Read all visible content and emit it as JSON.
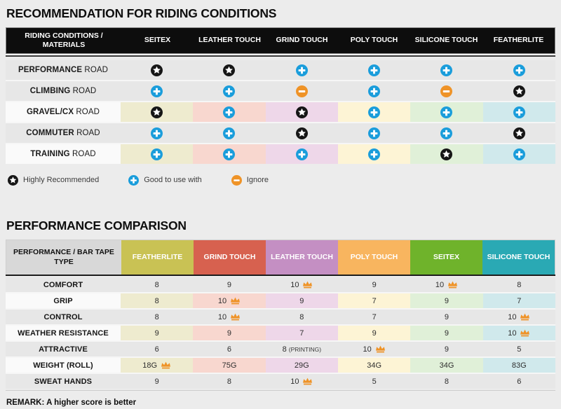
{
  "recommendation": {
    "title": "RECOMMENDATION FOR RIDING CONDITIONS",
    "header": [
      "RIDING CONDITIONS / MATERIALS",
      "SEITEX",
      "LEATHER TOUCH",
      "GRIND TOUCH",
      "POLY TOUCH",
      "SILICONE TOUCH",
      "FEATHERLITE"
    ],
    "rows": [
      {
        "label_bold": "PERFORMANCE",
        "label_rest": "ROAD",
        "tinted": false,
        "cells": [
          "star",
          "star",
          "plus",
          "plus",
          "plus",
          "plus"
        ]
      },
      {
        "label_bold": "CLIMBING",
        "label_rest": "ROAD",
        "tinted": false,
        "cells": [
          "plus",
          "plus",
          "minus",
          "plus",
          "minus",
          "star"
        ]
      },
      {
        "label_bold": "GRAVEL/CX",
        "label_rest": "ROAD",
        "tinted": true,
        "cells": [
          "star",
          "plus",
          "star",
          "plus",
          "plus",
          "plus"
        ]
      },
      {
        "label_bold": "COMMUTER",
        "label_rest": "ROAD",
        "tinted": false,
        "cells": [
          "plus",
          "plus",
          "star",
          "plus",
          "plus",
          "star"
        ]
      },
      {
        "label_bold": "TRAINING",
        "label_rest": "ROAD",
        "tinted": true,
        "cells": [
          "plus",
          "plus",
          "plus",
          "plus",
          "star",
          "plus"
        ]
      }
    ],
    "legend": [
      {
        "icon": "star",
        "label": "Highly Recommended"
      },
      {
        "icon": "plus",
        "label": "Good to use with"
      },
      {
        "icon": "minus",
        "label": "Ignore"
      }
    ]
  },
  "performance": {
    "title": "PERFORMANCE COMPARISON",
    "header_label": "PERFORMANCE / BAR TAPE TYPE",
    "columns": [
      {
        "label": "FEATHERLITE",
        "color": "#c9c254"
      },
      {
        "label": "GRIND TOUCH",
        "color": "#d7614f"
      },
      {
        "label": "LEATHER TOUCH",
        "color": "#c48fc3"
      },
      {
        "label": "POLY TOUCH",
        "color": "#f8b55f"
      },
      {
        "label": "SEITEX",
        "color": "#6fb32b"
      },
      {
        "label": "SILICONE TOUCH",
        "color": "#2aa9b4"
      }
    ],
    "rows": [
      {
        "label": "COMFORT",
        "tinted": false,
        "cells": [
          {
            "v": "8"
          },
          {
            "v": "9"
          },
          {
            "v": "10",
            "crown": true
          },
          {
            "v": "9"
          },
          {
            "v": "10",
            "crown": true
          },
          {
            "v": "8"
          }
        ]
      },
      {
        "label": "GRIP",
        "tinted": true,
        "cells": [
          {
            "v": "8"
          },
          {
            "v": "10",
            "crown": true
          },
          {
            "v": "9"
          },
          {
            "v": "7"
          },
          {
            "v": "9"
          },
          {
            "v": "7"
          }
        ]
      },
      {
        "label": "CONTROL",
        "tinted": false,
        "cells": [
          {
            "v": "8"
          },
          {
            "v": "10",
            "crown": true
          },
          {
            "v": "8"
          },
          {
            "v": "7"
          },
          {
            "v": "9"
          },
          {
            "v": "10",
            "crown": true
          }
        ]
      },
      {
        "label": "WEATHER RESISTANCE",
        "tinted": true,
        "cells": [
          {
            "v": "9"
          },
          {
            "v": "9"
          },
          {
            "v": "7"
          },
          {
            "v": "9"
          },
          {
            "v": "9"
          },
          {
            "v": "10",
            "crown": true
          }
        ]
      },
      {
        "label": "ATTRACTIVE",
        "tinted": false,
        "cells": [
          {
            "v": "6"
          },
          {
            "v": "6"
          },
          {
            "v": "8",
            "suffix": "(PRINTING)"
          },
          {
            "v": "10",
            "crown": true
          },
          {
            "v": "9"
          },
          {
            "v": "5"
          }
        ]
      },
      {
        "label": "WEIGHT (ROLL)",
        "tinted": true,
        "cells": [
          {
            "v": "18G",
            "crown": true
          },
          {
            "v": "75G"
          },
          {
            "v": "29G"
          },
          {
            "v": "34G"
          },
          {
            "v": "34G"
          },
          {
            "v": "83G"
          }
        ]
      },
      {
        "label": "SWEAT HANDS",
        "tinted": false,
        "cells": [
          {
            "v": "9"
          },
          {
            "v": "8"
          },
          {
            "v": "10",
            "crown": true
          },
          {
            "v": "5"
          },
          {
            "v": "8"
          },
          {
            "v": "6"
          }
        ]
      }
    ],
    "remark": "REMARK: A higher score is better"
  },
  "column_tints": [
    "#eeebcf",
    "#f8d7cf",
    "#eed7e9",
    "#fdf4d5",
    "#e0f0d8",
    "#d0e9ec"
  ],
  "icon_colors": {
    "star_bg": "#161616",
    "plus_bg": "#1a9ddb",
    "minus_bg": "#ef9327",
    "crown": "#ef9327",
    "glyph": "#ffffff"
  },
  "row_colors": {
    "plain_cell": "#e7e7e7",
    "tinted_label_cell": "#fafafa"
  }
}
